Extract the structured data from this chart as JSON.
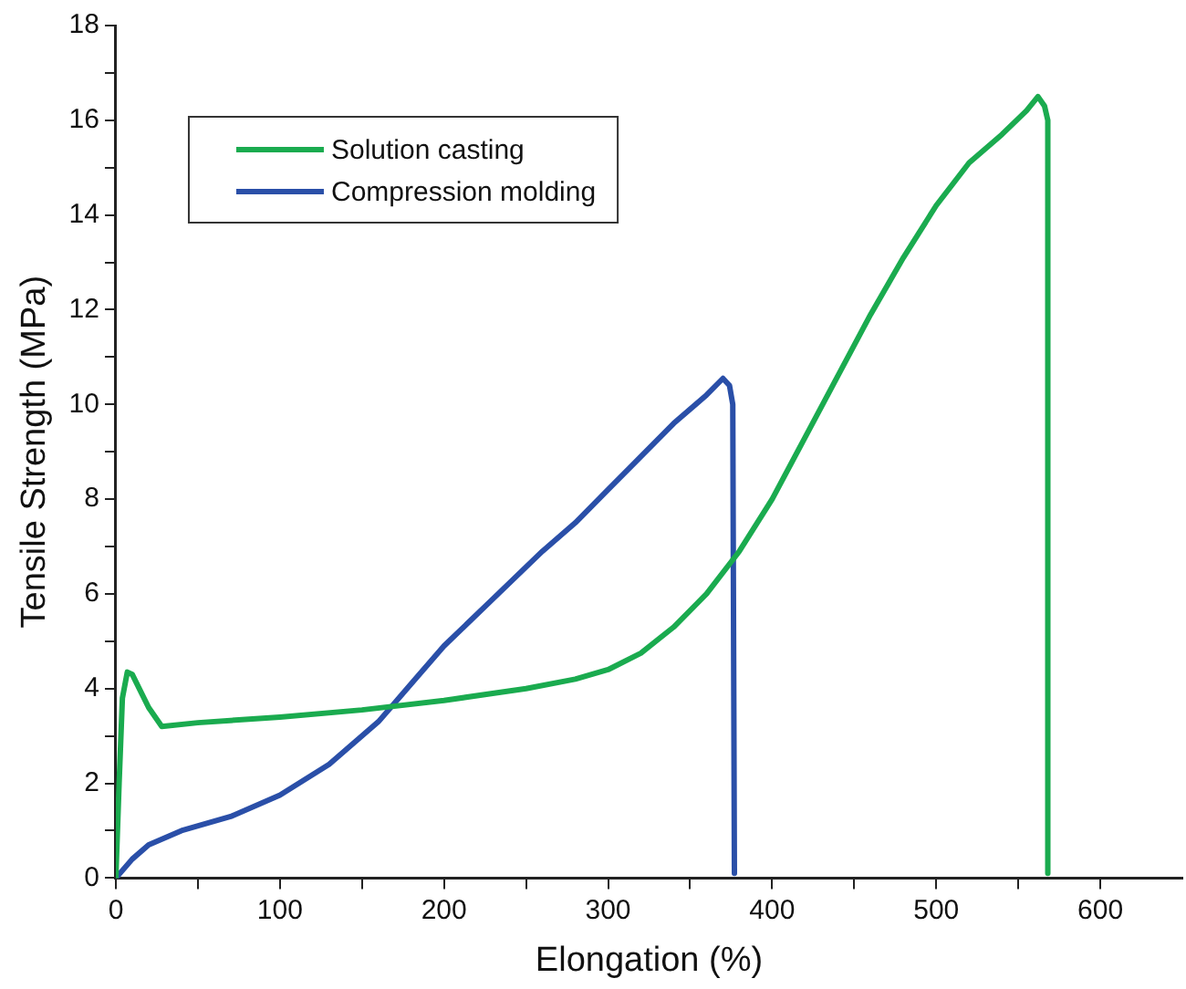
{
  "chart_data": {
    "type": "line",
    "xlabel": "Elongation (%)",
    "ylabel": "Tensile Strength (MPa)",
    "xlim": [
      0,
      650
    ],
    "xticks": [
      0,
      {
        "value": 50,
        "label": null
      },
      100,
      {
        "value": 150,
        "label": null
      },
      200,
      {
        "value": 250,
        "label": null
      },
      300,
      {
        "value": 350,
        "label": null
      },
      400,
      {
        "value": 450,
        "label": null
      },
      500,
      {
        "value": 550,
        "label": null
      },
      600
    ],
    "ylim": [
      0,
      18
    ],
    "yticks": [
      0,
      {
        "value": 1,
        "label": null
      },
      2,
      {
        "value": 3,
        "label": null
      },
      4,
      {
        "value": 5,
        "label": null
      },
      6,
      {
        "value": 7,
        "label": null
      },
      8,
      {
        "value": 9,
        "label": null
      },
      10,
      {
        "value": 11,
        "label": null
      },
      12,
      {
        "value": 13,
        "label": null
      },
      14,
      {
        "value": 15,
        "label": null
      },
      16,
      {
        "value": 17,
        "label": null
      },
      18
    ],
    "grid": false,
    "legend": "top left",
    "marker": "none",
    "line_style": "solid",
    "series": [
      {
        "name": "Solution casting",
        "color": "#1aab4f",
        "x": [
          0,
          2,
          4,
          7,
          10,
          20,
          28,
          50,
          100,
          150,
          200,
          250,
          280,
          300,
          320,
          340,
          360,
          380,
          400,
          420,
          440,
          460,
          480,
          500,
          520,
          540,
          555,
          562,
          566,
          568,
          568
        ],
        "values": [
          0,
          2,
          3.8,
          4.35,
          4.3,
          3.6,
          3.2,
          3.28,
          3.4,
          3.55,
          3.75,
          4.0,
          4.2,
          4.4,
          4.75,
          5.3,
          6.0,
          6.9,
          8.0,
          9.3,
          10.6,
          11.9,
          13.1,
          14.2,
          15.1,
          15.7,
          16.2,
          16.5,
          16.3,
          16.0,
          0.1
        ]
      },
      {
        "name": "Compression molding",
        "color": "#2a4fa8",
        "x": [
          0,
          10,
          20,
          40,
          70,
          100,
          130,
          160,
          180,
          200,
          230,
          260,
          280,
          300,
          320,
          340,
          360,
          370,
          374,
          376,
          377
        ],
        "values": [
          0,
          0.4,
          0.7,
          1.0,
          1.3,
          1.75,
          2.4,
          3.3,
          4.1,
          4.9,
          5.9,
          6.9,
          7.5,
          8.2,
          8.9,
          9.6,
          10.2,
          10.55,
          10.4,
          10.0,
          0.1
        ]
      }
    ]
  }
}
